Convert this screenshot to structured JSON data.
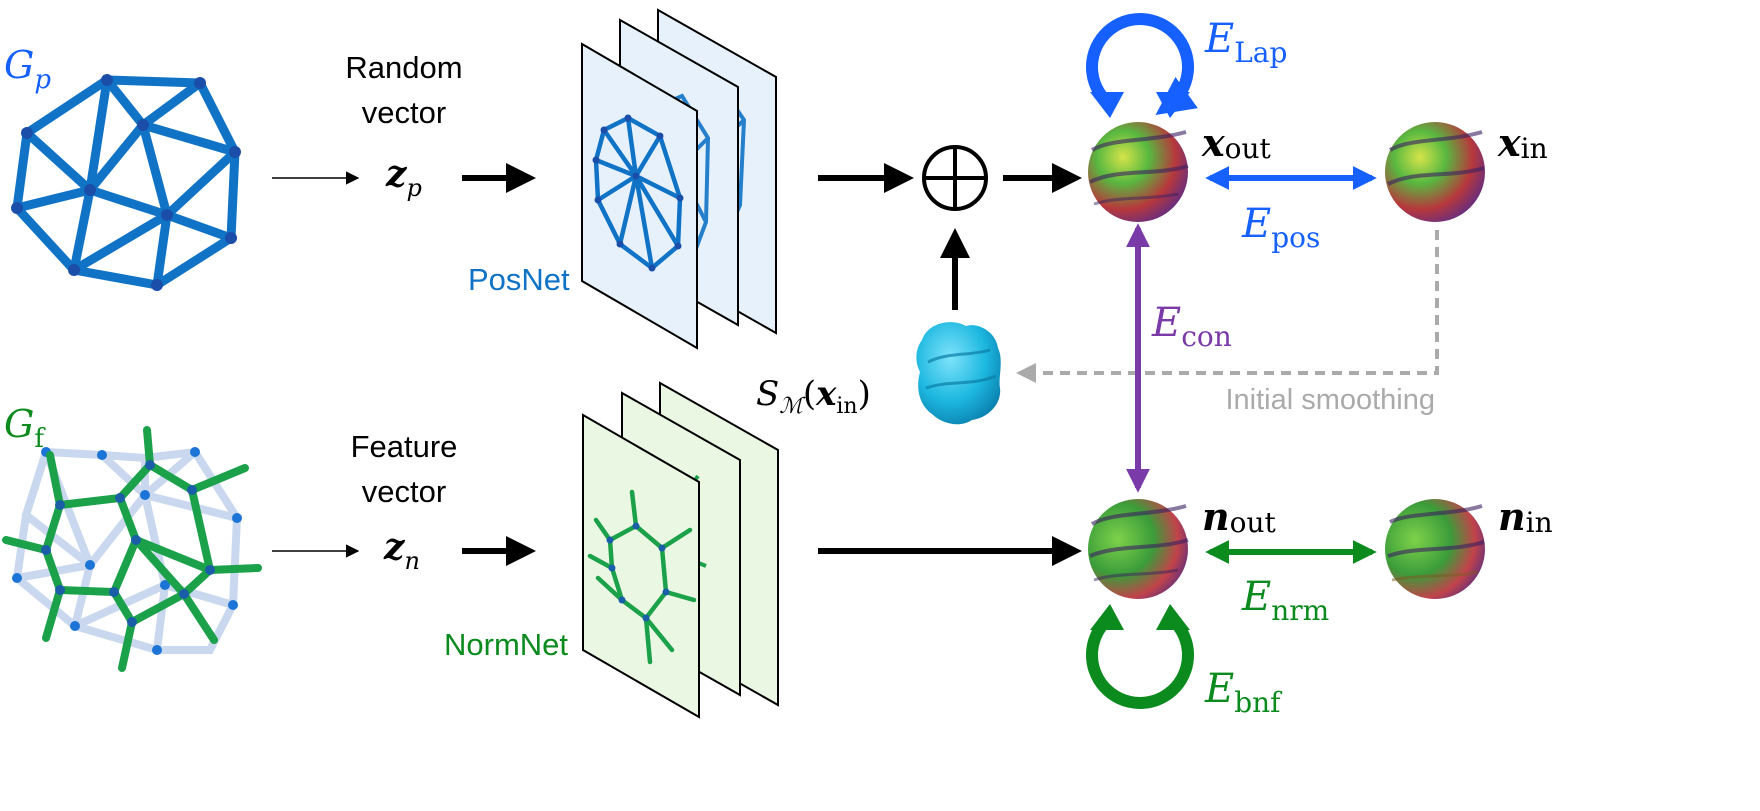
{
  "colors": {
    "blue": "#1560ff",
    "posnet_blue": "#1173c6",
    "green": "#0b8a1e",
    "purple": "#7a3aa8",
    "gray": "#aaaaaa",
    "cyan": "#1db8e0",
    "panel_blue": "#e6f1fb",
    "panel_green": "#eaf7e2"
  },
  "top_row": {
    "graph_label": {
      "main": "G",
      "sub": "p"
    },
    "vector_caption": [
      "Random",
      "vector"
    ],
    "vector_symbol": {
      "main": "z",
      "sub": "p"
    },
    "network_label": "PosNet",
    "sum_symbol": "⊕",
    "smoothed_label": {
      "main": "S",
      "sub": "ℳ",
      "arg": "x",
      "arg_sub": "in"
    }
  },
  "bottom_row": {
    "graph_label": {
      "main": "G",
      "sub": "f"
    },
    "vector_caption": [
      "Feature",
      "vector"
    ],
    "vector_symbol": {
      "main": "z",
      "sub": "n"
    },
    "network_label": "NormNet"
  },
  "outputs": {
    "x_out": {
      "main": "x",
      "sub": "out"
    },
    "x_in": {
      "main": "x",
      "sub": "in"
    },
    "n_out": {
      "main": "n",
      "sub": "out"
    },
    "n_in": {
      "main": "n",
      "sub": "in"
    }
  },
  "losses": {
    "lap": {
      "main": "E",
      "sub": "Lap"
    },
    "pos": {
      "main": "E",
      "sub": "pos"
    },
    "con": {
      "main": "E",
      "sub": "con"
    },
    "nrm": {
      "main": "E",
      "sub": "nrm"
    },
    "bnf": {
      "main": "E",
      "sub": "bnf"
    }
  },
  "smoothing_label": "Initial smoothing"
}
